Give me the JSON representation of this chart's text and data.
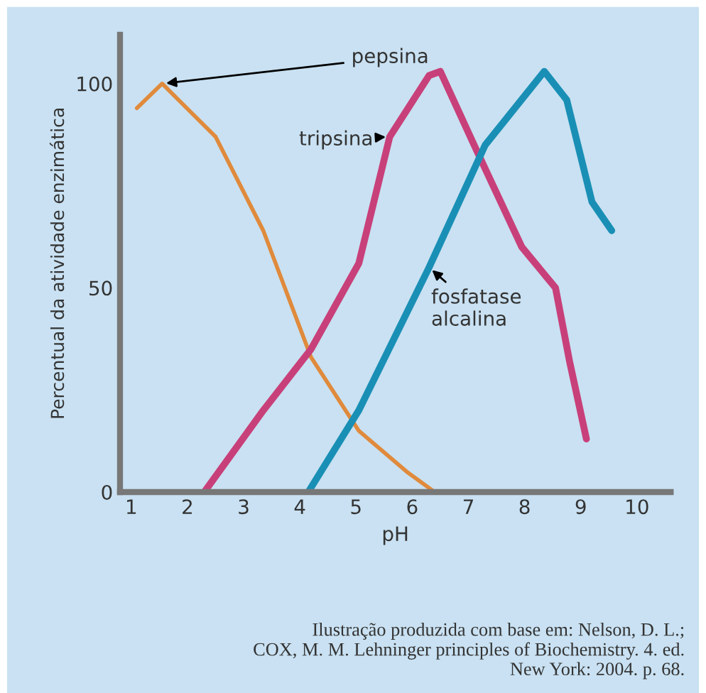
{
  "chart_data": {
    "type": "line",
    "xlabel": "pH",
    "ylabel": "Percentual da atividade enzimática",
    "xlim": [
      0.8,
      10.6
    ],
    "ylim": [
      0,
      112
    ],
    "xticks": [
      1,
      2,
      3,
      4,
      5,
      6,
      7,
      8,
      9,
      10
    ],
    "yticks": [
      0,
      50,
      100
    ],
    "grid": false,
    "legend": false,
    "marker": "none",
    "line_style": "solid",
    "series": [
      {
        "name": "pepsina",
        "color": "#e08a3c",
        "x": [
          1.1,
          1.55,
          2.5,
          3.35,
          4.2,
          5.05,
          5.9,
          6.4
        ],
        "values": [
          94,
          100,
          87,
          64,
          33,
          15,
          5,
          0
        ]
      },
      {
        "name": "tripsina",
        "color": "#c8407a",
        "x": [
          2.3,
          3.35,
          4.2,
          5.05,
          5.6,
          6.3,
          6.5,
          7.1,
          7.95,
          8.55,
          8.8,
          9.1
        ],
        "values": [
          0,
          20,
          35,
          56,
          87,
          102,
          103,
          85,
          60,
          50,
          32,
          13
        ]
      },
      {
        "name": "fosfatase\nalcalina",
        "color": "#1a8fb5",
        "x": [
          4.15,
          5.05,
          6.3,
          7.3,
          8.35,
          8.75,
          9.2,
          9.55
        ],
        "values": [
          0,
          20,
          55,
          85,
          103,
          96,
          71,
          64
        ]
      }
    ],
    "annotations": [
      "Ilustração produzida com base em: Nelson, D. L.;\nCOX, M. M. Lehninger principles of Biochemistry. 4. ed.\nNew York: 2004. p. 68."
    ]
  }
}
